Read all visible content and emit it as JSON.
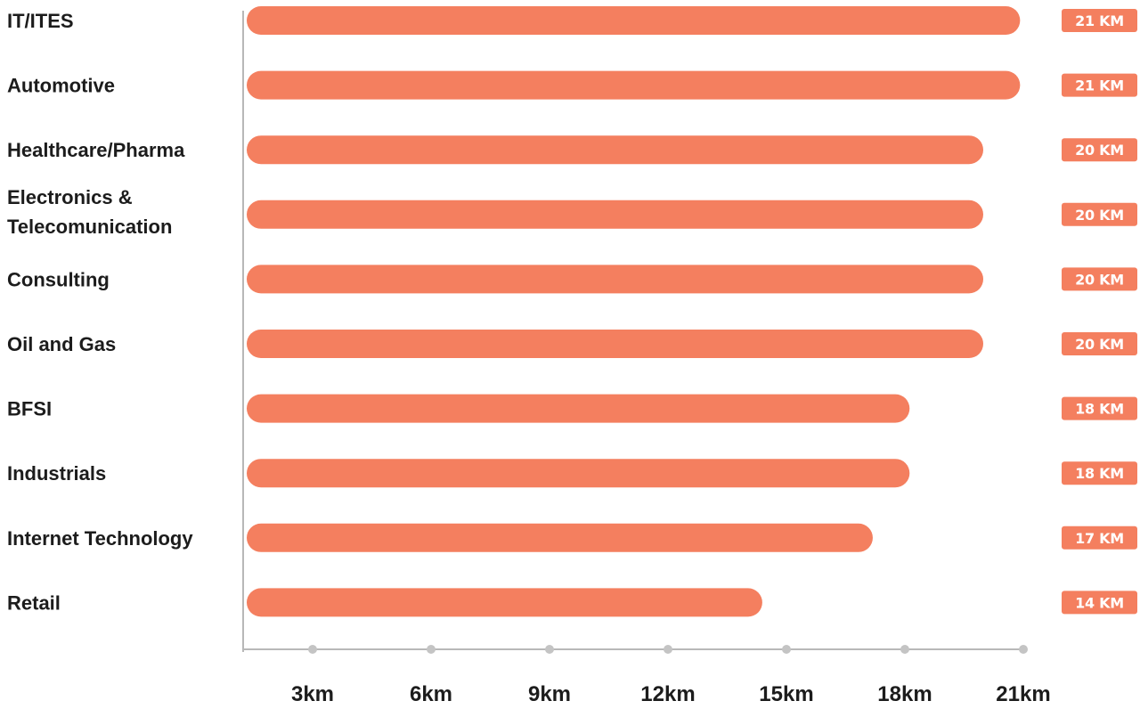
{
  "chart_data": {
    "type": "bar",
    "orientation": "horizontal",
    "categories": [
      "IT/ITES",
      "Automotive",
      "Healthcare/Pharma",
      "Electronics & Telecomunication",
      "Consulting",
      "Oil and Gas",
      "BFSI",
      "Industrials",
      "Internet Technology",
      "Retail"
    ],
    "values": [
      21,
      21,
      20,
      20,
      20,
      20,
      18,
      18,
      17,
      14
    ],
    "value_labels": [
      "21 KM",
      "21 KM",
      "20 KM",
      "20 KM",
      "20 KM",
      "20 KM",
      "18 KM",
      "18 KM",
      "17 KM",
      "14 KM"
    ],
    "x_ticks": [
      3,
      6,
      9,
      12,
      15,
      18,
      21
    ],
    "x_tick_labels": [
      "3km",
      "6km",
      "9km",
      "12km",
      "15km",
      "18km",
      "21km"
    ],
    "xlim": [
      0,
      21
    ],
    "grid": false,
    "legend": "none",
    "colors": {
      "bar": "#f47f5f",
      "badge": "#f47f5f",
      "axis": "#b8b8b8",
      "tick_dot": "#c4c4c4",
      "text": "#1c1c1c"
    }
  }
}
